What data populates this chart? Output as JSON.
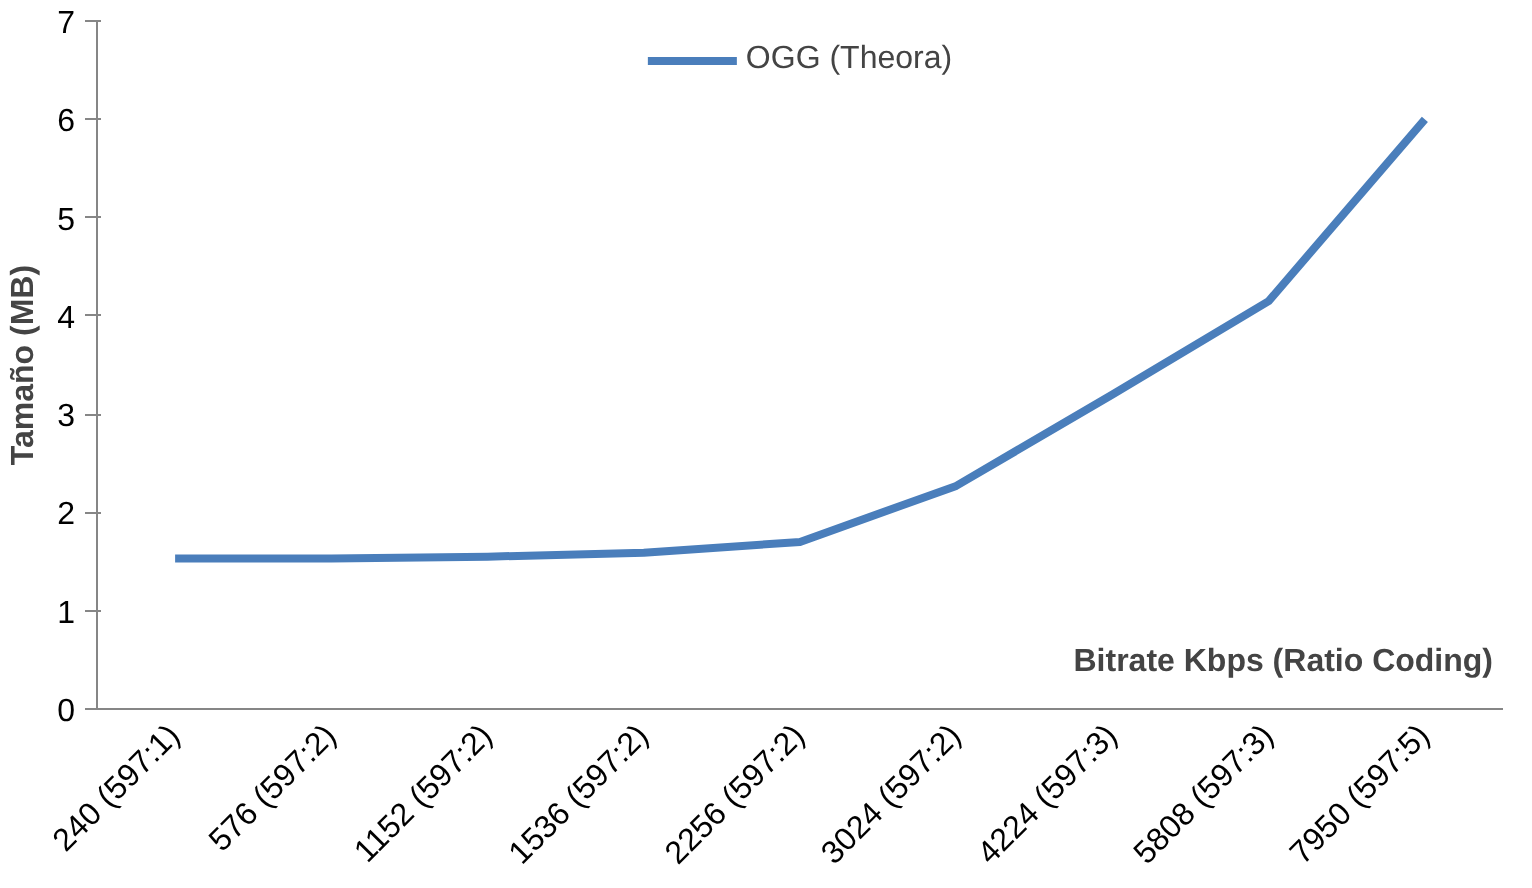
{
  "chart_data": {
    "type": "line",
    "xlabel": "Bitrate Kbps (Ratio Coding)",
    "ylabel": "Tamaño (MB)",
    "categories": [
      "240 (597:1)",
      "576 (597:2)",
      "1152 (597:2)",
      "1536 (597:2)",
      "2256 (597:2)",
      "3024 (597:2)",
      "4224 (597:3)",
      "5808 (597:3)",
      "7950 (597:5)"
    ],
    "series": [
      {
        "name": "OGG (Theora)",
        "color": "#4a7ebb",
        "values": [
          1.53,
          1.53,
          1.55,
          1.59,
          1.7,
          2.27,
          3.2,
          4.15,
          6.0
        ]
      }
    ],
    "ylim": [
      0,
      7
    ],
    "yticks": [
      0,
      1,
      2,
      3,
      4,
      5,
      6,
      7
    ],
    "grid": false,
    "legend": "top",
    "marker": "none",
    "line_style": "solid"
  }
}
